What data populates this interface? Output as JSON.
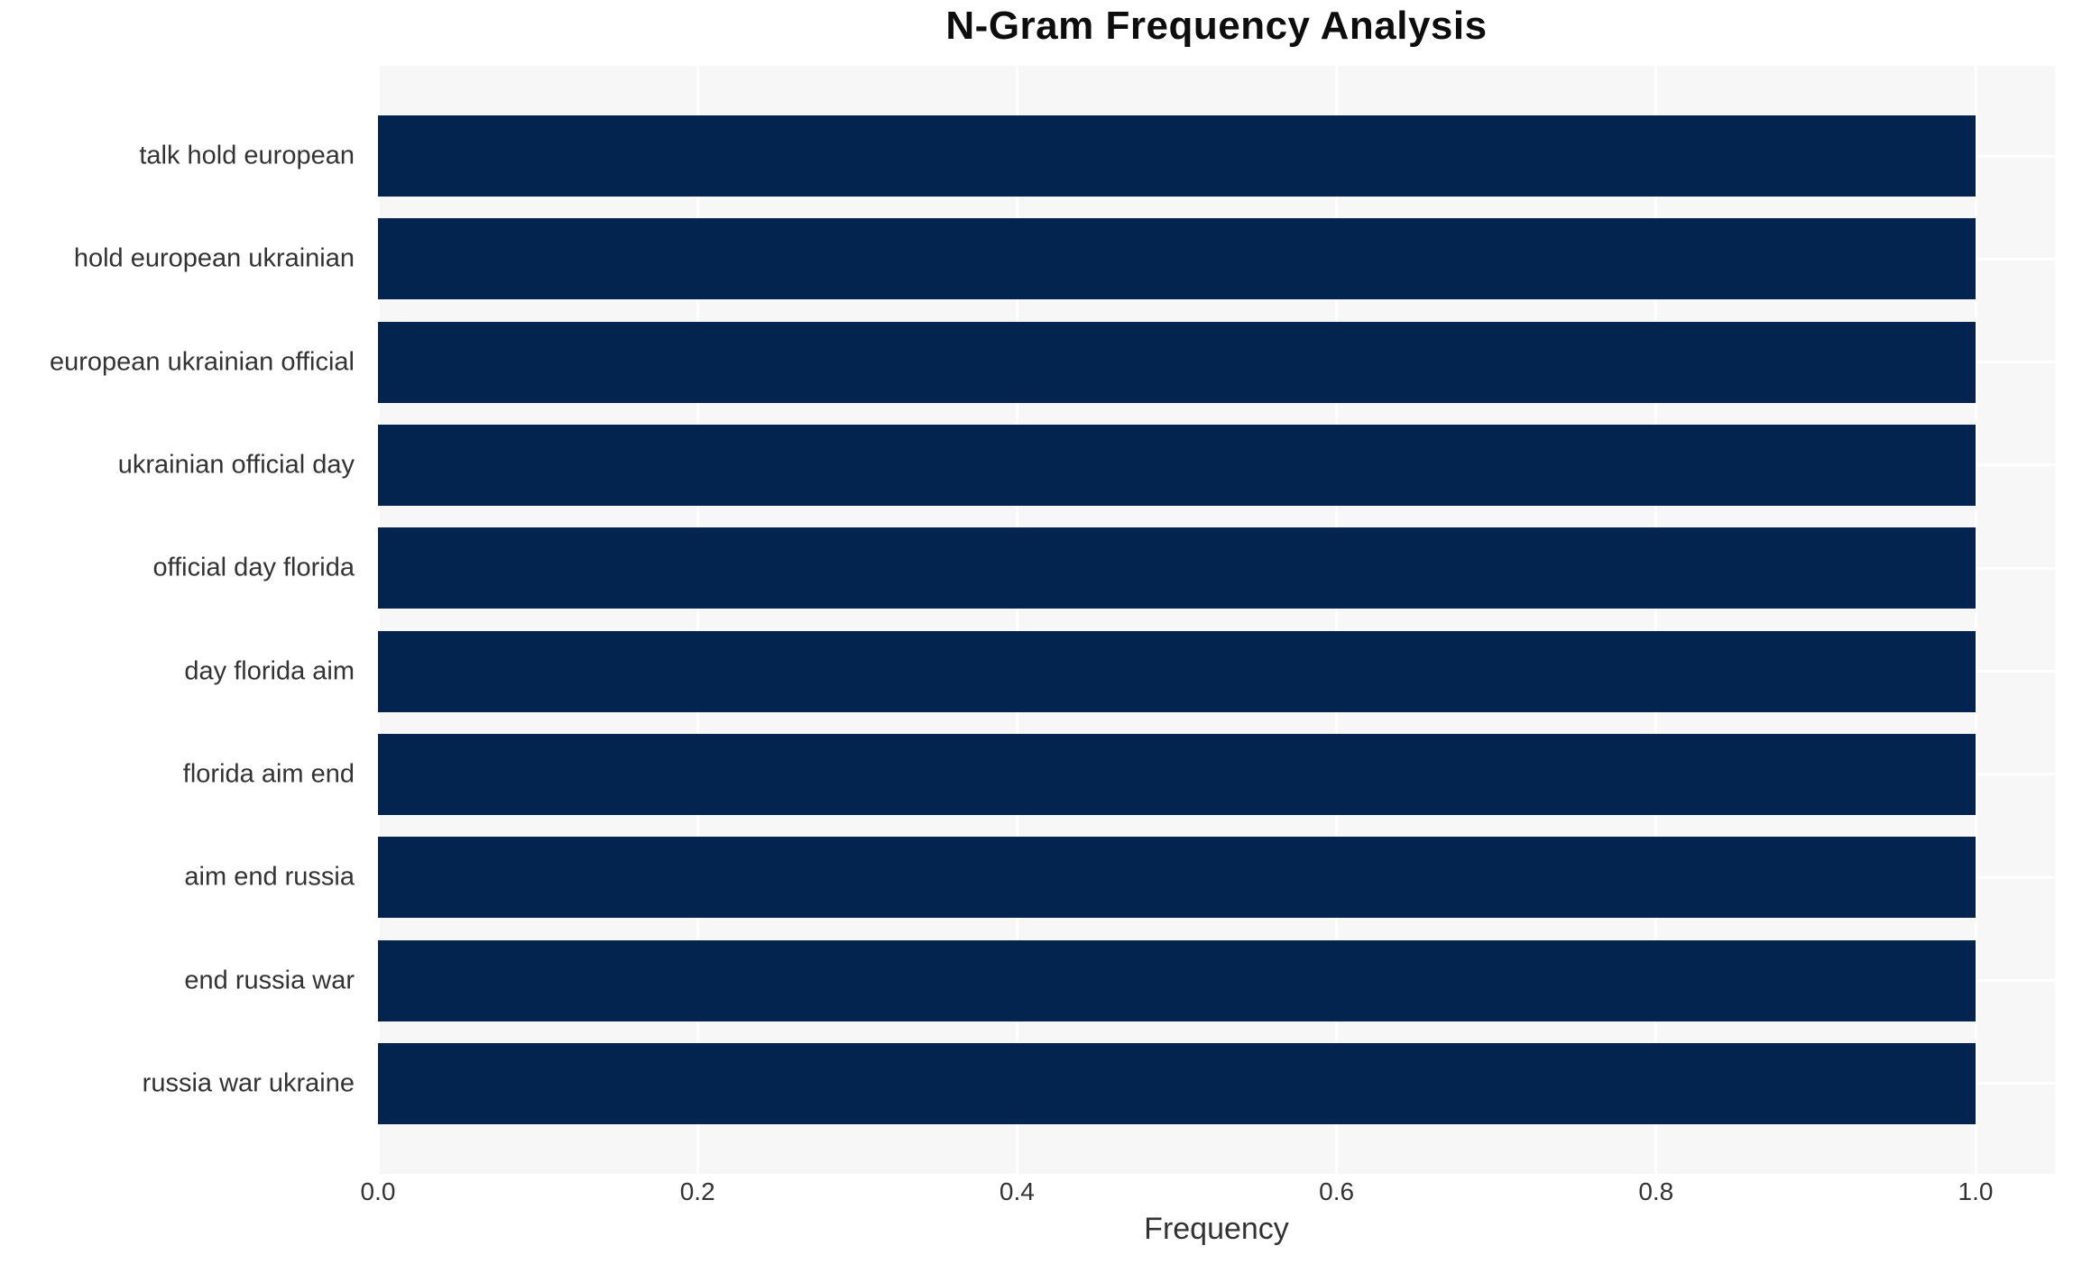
{
  "chart_data": {
    "type": "bar",
    "orientation": "horizontal",
    "title": "N-Gram Frequency Analysis",
    "xlabel": "Frequency",
    "ylabel": "",
    "categories": [
      "talk hold european",
      "hold european ukrainian",
      "european ukrainian official",
      "ukrainian official day",
      "official day florida",
      "day florida aim",
      "florida aim end",
      "aim end russia",
      "end russia war",
      "russia war ukraine"
    ],
    "values": [
      1.0,
      1.0,
      1.0,
      1.0,
      1.0,
      1.0,
      1.0,
      1.0,
      1.0,
      1.0
    ],
    "xlim": [
      0.0,
      1.0
    ],
    "xticks": [
      "0.0",
      "0.2",
      "0.4",
      "0.6",
      "0.8",
      "1.0"
    ],
    "grid": true,
    "colors": {
      "bar": "#02244e",
      "plot_background": "#f7f7f8",
      "gridline": "#ffffff",
      "tick_text": "#333333",
      "title_text": "#0d0d0d",
      "page_background": "#ffffff"
    }
  }
}
